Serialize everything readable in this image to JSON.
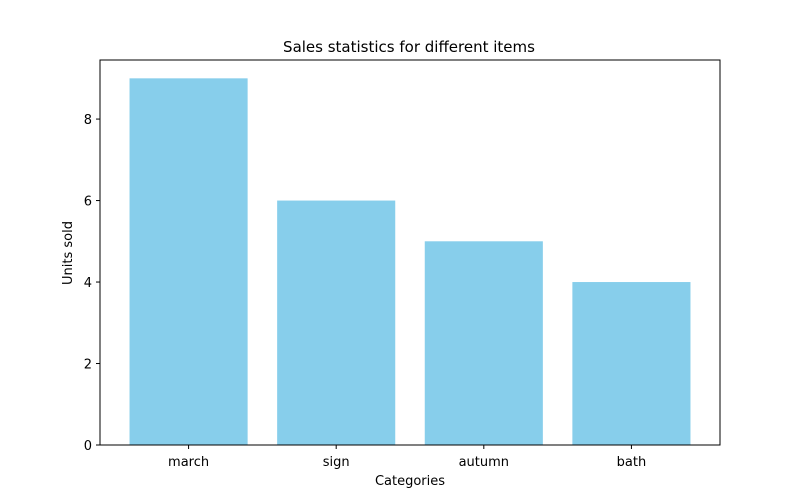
{
  "chart_data": {
    "type": "bar",
    "title": "Sales statistics for different items",
    "xlabel": "Categories",
    "ylabel": "Units sold",
    "categories": [
      "march",
      "sign",
      "autumn",
      "bath"
    ],
    "values": [
      9,
      6,
      5,
      4
    ],
    "ylim": [
      0,
      9.45
    ],
    "yticks": [
      0,
      2,
      4,
      6,
      8
    ],
    "bar_color": "#87CEEB",
    "grid": false,
    "legend": "none"
  }
}
